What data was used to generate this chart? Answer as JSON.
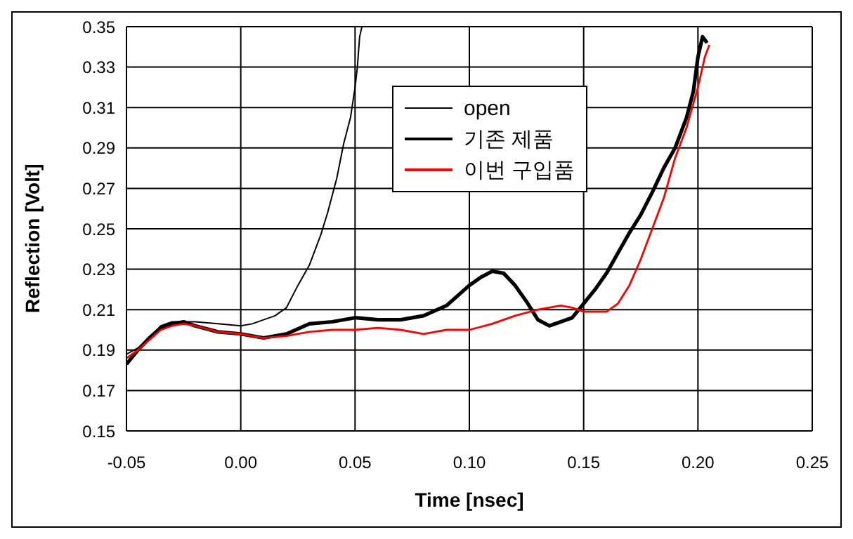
{
  "chart_data": {
    "type": "line",
    "xlabel": "Time [nsec]",
    "ylabel": "Reflection [Volt]",
    "xlim": [
      -0.05,
      0.25
    ],
    "xticks": [
      {
        "value": -0.05,
        "label": "-0.05"
      },
      {
        "value": 0,
        "label": "0.00"
      },
      {
        "value": 0.05,
        "label": "0.05"
      },
      {
        "value": 0.1,
        "label": "0.10"
      },
      {
        "value": 0.15,
        "label": "0.15"
      },
      {
        "value": 0.2,
        "label": "0.20"
      },
      {
        "value": 0.25,
        "label": "0.25"
      }
    ],
    "ylim": [
      0.15,
      0.35
    ],
    "yticks": [
      0.15,
      0.17,
      0.19,
      0.21,
      0.23,
      0.25,
      0.27,
      0.29,
      0.31,
      0.33,
      0.35
    ],
    "grid": true,
    "legend": "top",
    "marker": "none",
    "line_style": "solid",
    "series": [
      {
        "name": "open",
        "color": "#000000",
        "x": [
          -0.05,
          -0.045,
          -0.04,
          -0.035,
          -0.03,
          -0.02,
          -0.01,
          0,
          0.005,
          0.01,
          0.015,
          0.02,
          0.025,
          0.03,
          0.035,
          0.038,
          0.042,
          0.045,
          0.048,
          0.05,
          0.051,
          0.052,
          0.053
        ],
        "values": [
          0.188,
          0.191,
          0.196,
          0.202,
          0.204,
          0.204,
          0.203,
          0.202,
          0.203,
          0.205,
          0.207,
          0.211,
          0.222,
          0.232,
          0.247,
          0.258,
          0.275,
          0.292,
          0.305,
          0.32,
          0.33,
          0.345,
          0.35
        ]
      },
      {
        "name": "기존 제품",
        "color": "#000000",
        "x": [
          -0.05,
          -0.045,
          -0.04,
          -0.035,
          -0.03,
          -0.025,
          -0.02,
          -0.01,
          0,
          0.01,
          0.02,
          0.03,
          0.04,
          0.05,
          0.06,
          0.07,
          0.08,
          0.09,
          0.1,
          0.105,
          0.11,
          0.115,
          0.12,
          0.125,
          0.13,
          0.135,
          0.14,
          0.145,
          0.15,
          0.155,
          0.16,
          0.165,
          0.17,
          0.175,
          0.18,
          0.185,
          0.19,
          0.195,
          0.198,
          0.2,
          0.202,
          0.204
        ],
        "values": [
          0.183,
          0.19,
          0.196,
          0.201,
          0.203,
          0.204,
          0.202,
          0.199,
          0.198,
          0.196,
          0.198,
          0.203,
          0.204,
          0.206,
          0.205,
          0.205,
          0.207,
          0.212,
          0.222,
          0.226,
          0.229,
          0.228,
          0.222,
          0.214,
          0.205,
          0.202,
          0.204,
          0.206,
          0.213,
          0.22,
          0.228,
          0.238,
          0.248,
          0.257,
          0.268,
          0.28,
          0.29,
          0.305,
          0.318,
          0.335,
          0.345,
          0.342
        ]
      },
      {
        "name": "이번 구입품",
        "color": "#ff0000",
        "x": [
          -0.05,
          -0.045,
          -0.04,
          -0.035,
          -0.03,
          -0.025,
          -0.02,
          -0.01,
          0,
          0.01,
          0.02,
          0.03,
          0.04,
          0.05,
          0.06,
          0.07,
          0.08,
          0.09,
          0.1,
          0.11,
          0.12,
          0.13,
          0.14,
          0.145,
          0.15,
          0.16,
          0.165,
          0.17,
          0.175,
          0.18,
          0.185,
          0.19,
          0.195,
          0.2,
          0.203,
          0.205
        ],
        "values": [
          0.186,
          0.19,
          0.195,
          0.2,
          0.202,
          0.203,
          0.202,
          0.199,
          0.198,
          0.196,
          0.197,
          0.199,
          0.2,
          0.2,
          0.201,
          0.2,
          0.198,
          0.2,
          0.2,
          0.203,
          0.207,
          0.21,
          0.212,
          0.211,
          0.209,
          0.209,
          0.213,
          0.222,
          0.235,
          0.25,
          0.265,
          0.285,
          0.3,
          0.32,
          0.335,
          0.341
        ]
      }
    ]
  }
}
